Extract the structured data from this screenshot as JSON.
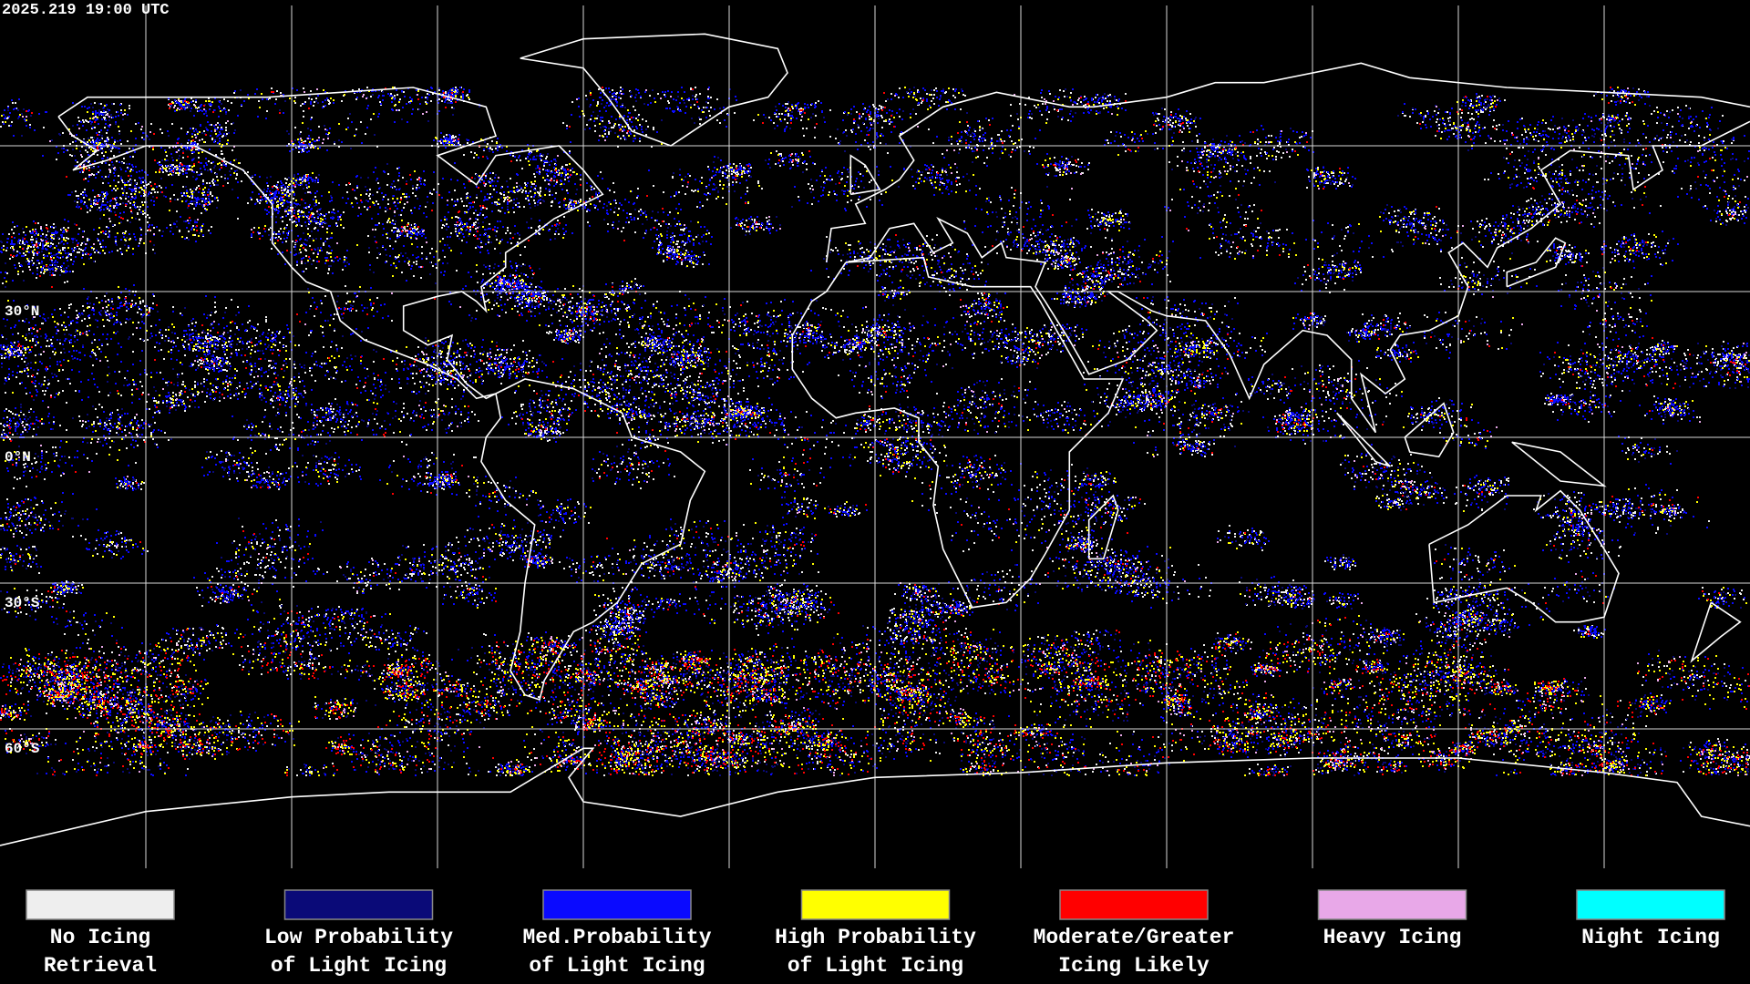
{
  "header": {
    "timestamp": "2025.219 19:00 UTC"
  },
  "latitude_labels": [
    "30°N",
    "0°N",
    "30°S",
    "60°S"
  ],
  "legend": [
    {
      "label_lines": [
        "No Icing",
        "Retrieval"
      ],
      "color": "#eeeeee"
    },
    {
      "label_lines": [
        "Low Probability",
        "of Light Icing"
      ],
      "color": "#0a0a78"
    },
    {
      "label_lines": [
        "Med.Probability",
        "of Light Icing"
      ],
      "color": "#0a0aff"
    },
    {
      "label_lines": [
        "High Probability",
        "of Light Icing"
      ],
      "color": "#ffff00"
    },
    {
      "label_lines": [
        "Moderate/Greater",
        "Icing Likely"
      ],
      "color": "#ff0000"
    },
    {
      "label_lines": [
        "Heavy Icing"
      ],
      "color": "#e8a8e8"
    },
    {
      "label_lines": [
        "Night Icing"
      ],
      "color": "#00ffff"
    }
  ]
}
